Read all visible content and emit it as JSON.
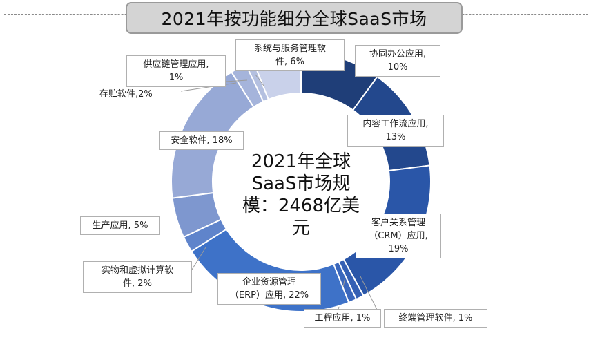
{
  "chart_data": {
    "type": "donut",
    "title": "2021年按功能细分全球SaaS市场",
    "center_text": [
      "2021年全球",
      "SaaS市场规",
      "模：2468亿美",
      "元"
    ],
    "segments": [
      {
        "label_lines": [
          "协同办公应用,",
          "10%"
        ],
        "value": 10,
        "color": "#1f3e78"
      },
      {
        "label_lines": [
          "内容工作流应用,",
          "13%"
        ],
        "value": 13,
        "color": "#23488d"
      },
      {
        "label_lines": [
          "客户关系管理",
          "（CRM）应用,",
          "19%"
        ],
        "value": 19,
        "color": "#2a56a8"
      },
      {
        "label_lines": [
          "终端管理软件, 1%"
        ],
        "value": 1,
        "color": "#3560b4"
      },
      {
        "label_lines": [
          "工程应用, 1%"
        ],
        "value": 1,
        "color": "#3a67bc"
      },
      {
        "label_lines": [
          "企业资源管理",
          "（ERP）应用, 22%"
        ],
        "value": 22,
        "color": "#3e72c8"
      },
      {
        "label_lines": [
          "实物和虚拟计算软",
          "件, 2%"
        ],
        "value": 2,
        "color": "#5f84cb"
      },
      {
        "label_lines": [
          "生产应用, 5%"
        ],
        "value": 5,
        "color": "#7e97cf"
      },
      {
        "label_lines": [
          "安全软件, 18%"
        ],
        "value": 18,
        "color": "#97a9d6"
      },
      {
        "label_lines": [
          "存贮软件,2%"
        ],
        "value": 2,
        "color": "#a5b4db"
      },
      {
        "label_lines": [
          "供应链管理应用,",
          "1%"
        ],
        "value": 1,
        "color": "#b4c0e0"
      },
      {
        "label_lines": [
          "系统与服务管理软",
          "件, 6%"
        ],
        "value": 6,
        "color": "#c9d1ea"
      }
    ]
  }
}
